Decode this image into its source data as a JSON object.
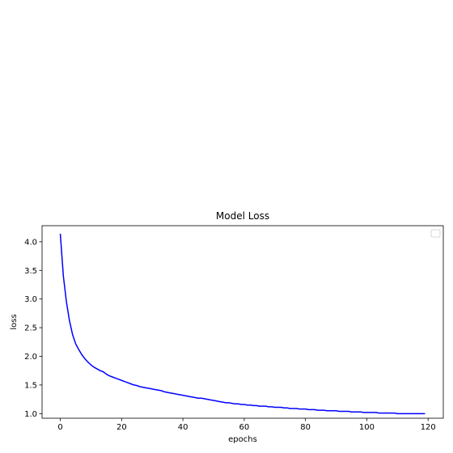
{
  "chart_data": {
    "type": "line",
    "title": "Model Loss",
    "xlabel": "epochs",
    "ylabel": "loss",
    "xlim": [
      -5.95,
      124.95
    ],
    "ylim": [
      0.92,
      4.28
    ],
    "xticks": [
      0,
      20,
      40,
      60,
      80,
      100,
      120
    ],
    "yticks": [
      1.0,
      1.5,
      2.0,
      2.5,
      3.0,
      3.5,
      4.0
    ],
    "ytick_labels": [
      "1.0",
      "1.5",
      "2.0",
      "2.5",
      "3.0",
      "3.5",
      "4.0"
    ],
    "legend": "top-right",
    "grid": false,
    "series": [
      {
        "color": "#0000ff",
        "x": [
          0,
          1,
          2,
          3,
          4,
          5,
          6,
          7,
          8,
          9,
          10,
          11,
          12,
          13,
          14,
          15,
          16,
          17,
          18,
          19,
          20,
          21,
          22,
          23,
          24,
          25,
          26,
          27,
          28,
          29,
          30,
          31,
          32,
          33,
          34,
          35,
          36,
          37,
          38,
          39,
          40,
          41,
          42,
          43,
          44,
          45,
          46,
          47,
          48,
          49,
          50,
          51,
          52,
          53,
          54,
          55,
          56,
          57,
          58,
          59,
          60,
          61,
          62,
          63,
          64,
          65,
          66,
          67,
          68,
          69,
          70,
          71,
          72,
          73,
          74,
          75,
          76,
          77,
          78,
          79,
          80,
          81,
          82,
          83,
          84,
          85,
          86,
          87,
          88,
          89,
          90,
          91,
          92,
          93,
          94,
          95,
          96,
          97,
          98,
          99,
          100,
          101,
          102,
          103,
          104,
          105,
          106,
          107,
          108,
          109,
          110,
          111,
          112,
          113,
          114,
          115,
          116,
          117,
          118,
          119
        ],
        "values": [
          4.14,
          3.4,
          2.95,
          2.62,
          2.38,
          2.22,
          2.12,
          2.03,
          1.96,
          1.9,
          1.85,
          1.81,
          1.78,
          1.75,
          1.73,
          1.69,
          1.66,
          1.64,
          1.62,
          1.6,
          1.58,
          1.56,
          1.54,
          1.52,
          1.5,
          1.49,
          1.47,
          1.46,
          1.45,
          1.44,
          1.43,
          1.42,
          1.41,
          1.4,
          1.38,
          1.37,
          1.36,
          1.35,
          1.34,
          1.33,
          1.32,
          1.31,
          1.3,
          1.29,
          1.28,
          1.27,
          1.27,
          1.26,
          1.25,
          1.24,
          1.23,
          1.22,
          1.21,
          1.2,
          1.19,
          1.19,
          1.18,
          1.17,
          1.17,
          1.16,
          1.16,
          1.15,
          1.15,
          1.14,
          1.14,
          1.13,
          1.13,
          1.13,
          1.12,
          1.12,
          1.11,
          1.11,
          1.11,
          1.1,
          1.1,
          1.09,
          1.09,
          1.09,
          1.08,
          1.08,
          1.08,
          1.07,
          1.07,
          1.07,
          1.06,
          1.06,
          1.06,
          1.05,
          1.05,
          1.05,
          1.05,
          1.04,
          1.04,
          1.04,
          1.04,
          1.03,
          1.03,
          1.03,
          1.03,
          1.02,
          1.02,
          1.02,
          1.02,
          1.02,
          1.01,
          1.01,
          1.01,
          1.01,
          1.01,
          1.01,
          1.0,
          1.0,
          1.0,
          1.0,
          1.0,
          1.0,
          1.0,
          1.0,
          1.0,
          1.0
        ]
      }
    ]
  }
}
